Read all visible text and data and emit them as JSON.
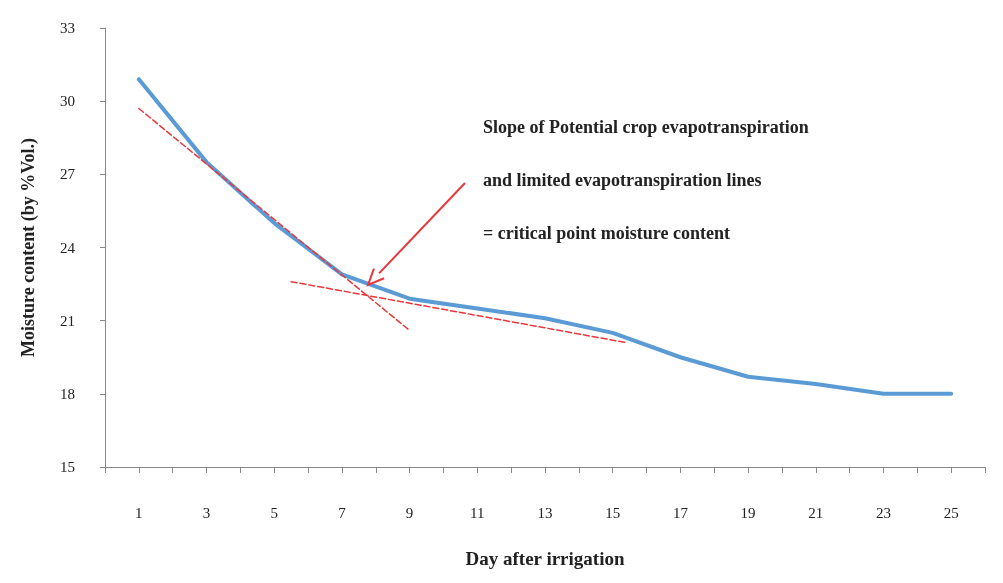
{
  "chart_data": {
    "type": "line",
    "xlabel": "Day after irrigation",
    "ylabel": "Moisture content (by %Vol.)",
    "xlim": [
      0,
      26
    ],
    "xticks": [
      {
        "value": 0,
        "label": null
      },
      {
        "value": 1,
        "label": "1"
      },
      {
        "value": 2,
        "label": null
      },
      {
        "value": 3,
        "label": "3"
      },
      {
        "value": 4,
        "label": null
      },
      {
        "value": 5,
        "label": "5"
      },
      {
        "value": 6,
        "label": null
      },
      {
        "value": 7,
        "label": "7"
      },
      {
        "value": 8,
        "label": null
      },
      {
        "value": 9,
        "label": "9"
      },
      {
        "value": 10,
        "label": null
      },
      {
        "value": 11,
        "label": "11"
      },
      {
        "value": 12,
        "label": null
      },
      {
        "value": 13,
        "label": "13"
      },
      {
        "value": 14,
        "label": null
      },
      {
        "value": 15,
        "label": "15"
      },
      {
        "value": 16,
        "label": null
      },
      {
        "value": 17,
        "label": "17"
      },
      {
        "value": 18,
        "label": null
      },
      {
        "value": 19,
        "label": "19"
      },
      {
        "value": 20,
        "label": null
      },
      {
        "value": 21,
        "label": "21"
      },
      {
        "value": 22,
        "label": null
      },
      {
        "value": 23,
        "label": "23"
      },
      {
        "value": 24,
        "label": null
      },
      {
        "value": 25,
        "label": "25"
      },
      {
        "value": 26,
        "label": null
      }
    ],
    "ylim": [
      15,
      33
    ],
    "yticks": [
      15,
      18,
      21,
      24,
      27,
      30,
      33
    ],
    "grid": false,
    "marker": "none",
    "series": [
      {
        "color": "#5b9bd5",
        "line_style": "solid",
        "x": [
          1,
          3,
          5,
          7,
          9,
          11,
          13,
          15,
          17,
          19,
          21,
          23,
          25
        ],
        "values": [
          30.9,
          27.5,
          25.0,
          22.9,
          21.9,
          21.5,
          21.1,
          20.5,
          19.5,
          18.7,
          18.4,
          18.0,
          18.0
        ]
      },
      {
        "color": "#e8383d",
        "line_style": "dashed",
        "x": [
          1,
          9
        ],
        "values": [
          29.7,
          20.6
        ]
      },
      {
        "color": "#e8383d",
        "line_style": "dashed",
        "x": [
          5.5,
          15.4
        ],
        "values": [
          22.6,
          20.1
        ]
      }
    ],
    "annotations": [
      "Slope of Potential crop evapotranspiration",
      "and limited evapotranspiration lines",
      "= critical point moisture content"
    ]
  }
}
